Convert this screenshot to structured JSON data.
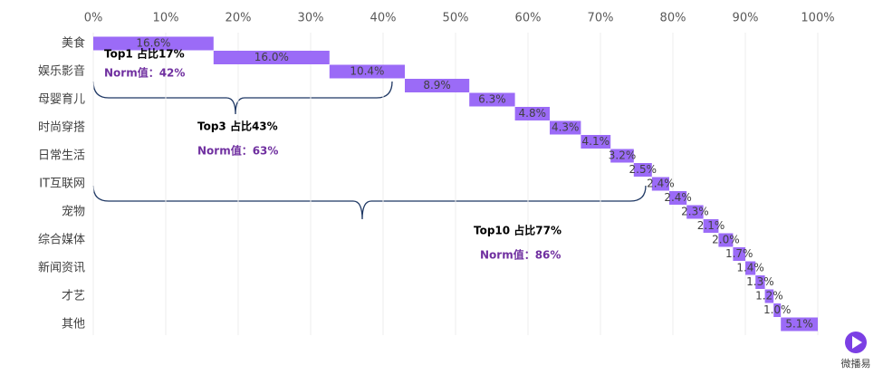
{
  "chart_data": {
    "type": "waterfall",
    "categories": [
      "美食",
      null,
      "娱乐影音",
      null,
      "母婴育儿",
      null,
      "时尚穿搭",
      null,
      "日常生活",
      null,
      "IT互联网",
      null,
      "宠物",
      null,
      "综合媒体",
      null,
      "新闻资讯",
      null,
      "才艺",
      null,
      "其他"
    ],
    "values": [
      16.6,
      16.0,
      10.4,
      8.9,
      6.3,
      4.8,
      4.3,
      4.1,
      3.2,
      2.5,
      2.4,
      2.4,
      2.3,
      2.1,
      2.0,
      1.7,
      1.4,
      1.3,
      1.2,
      1.0,
      5.1
    ],
    "value_labels": [
      "16.6%",
      "16.0%",
      "10.4%",
      "8.9%",
      "6.3%",
      "4.8%",
      "4.3%",
      "4.1%",
      "3.2%",
      "2.5%",
      "2.4%",
      "2.4%",
      "2.3%",
      "2.1%",
      "2.0%",
      "1.7%",
      "1.4%",
      "1.3%",
      "1.2%",
      "1.0%",
      "5.1%"
    ],
    "color": "#9b6bf7",
    "xlim": [
      0,
      100
    ],
    "xticks": [
      {
        "value": 0,
        "label": "0%"
      },
      {
        "value": 10,
        "label": "10%"
      },
      {
        "value": 20,
        "label": "20%"
      },
      {
        "value": 30,
        "label": "30%"
      },
      {
        "value": 40,
        "label": "40%"
      },
      {
        "value": 50,
        "label": "50%"
      },
      {
        "value": 60,
        "label": "60%"
      },
      {
        "value": 70,
        "label": "70%"
      },
      {
        "value": 80,
        "label": "80%"
      },
      {
        "value": 90,
        "label": "90%"
      },
      {
        "value": 100,
        "label": "100%"
      }
    ],
    "grid": true,
    "annotations": [
      {
        "title": "Top1 占比17%",
        "note": "Norm值：42%"
      },
      {
        "title": "Top3 占比43%",
        "note": "Norm值：63%"
      },
      {
        "title": "Top10 占比77%",
        "note": "Norm值：86%"
      }
    ],
    "brand": "微播易"
  }
}
